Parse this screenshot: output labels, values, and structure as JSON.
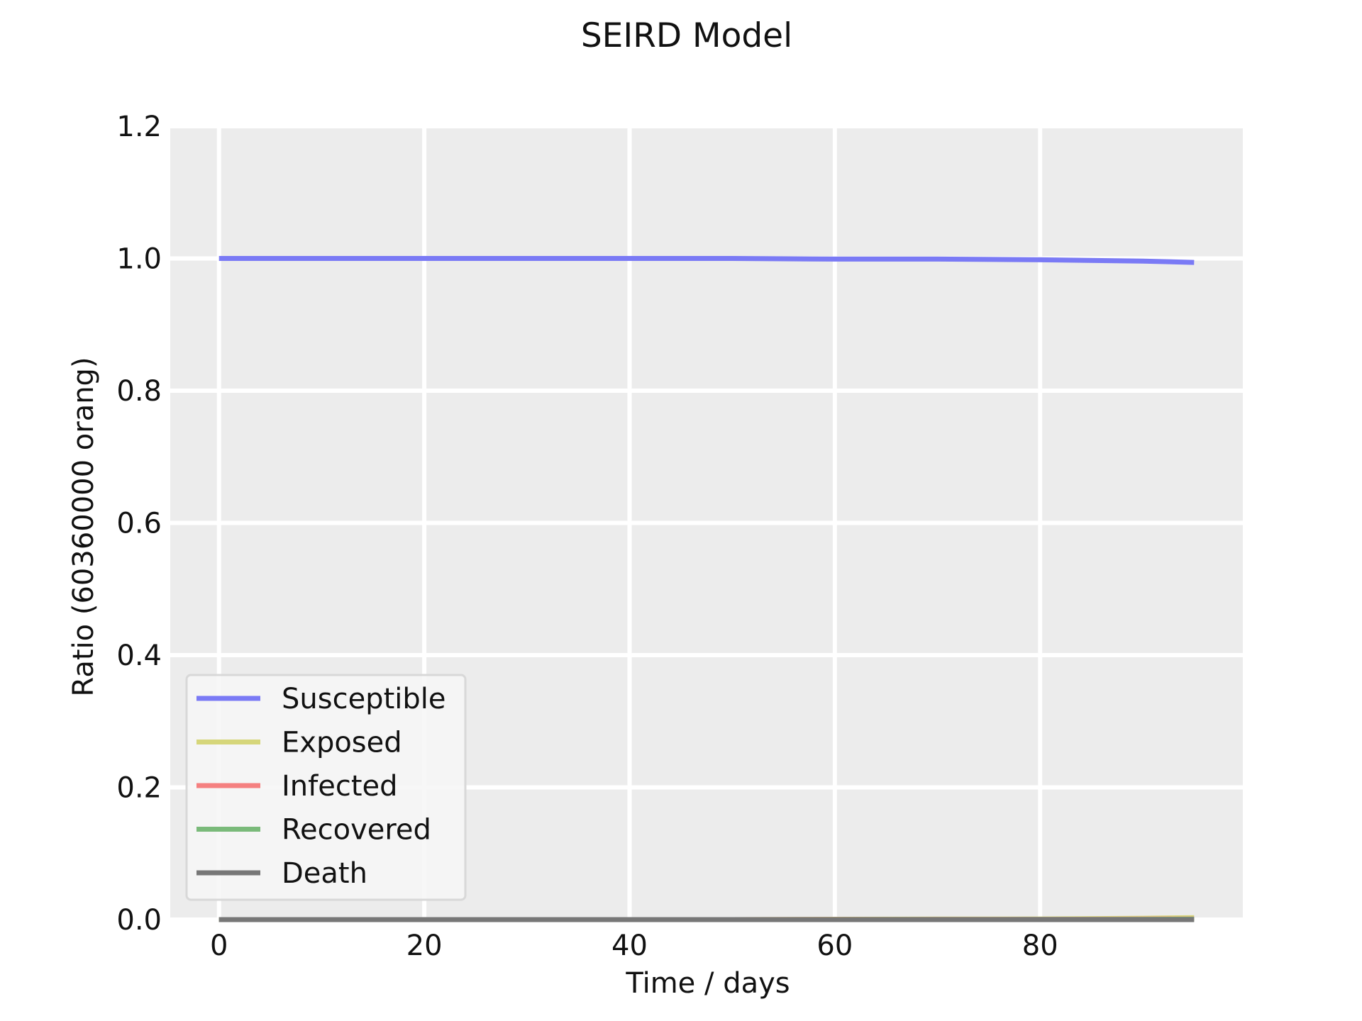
{
  "chart_data": {
    "type": "line",
    "title": "SEIRD Model",
    "xlabel": "Time / days",
    "ylabel": "Ratio (60360000 orang)",
    "xlim": [
      -4.75,
      99.75
    ],
    "ylim": [
      0.0,
      1.2
    ],
    "xticks": [
      0,
      20,
      40,
      60,
      80
    ],
    "xtick_labels": [
      "0",
      "20",
      "40",
      "60",
      "80"
    ],
    "yticks": [
      0.0,
      0.2,
      0.4,
      0.6,
      0.8,
      1.0,
      1.2
    ],
    "ytick_labels": [
      "0.0",
      "0.2",
      "0.4",
      "0.6",
      "0.8",
      "1.0",
      "1.2"
    ],
    "grid": true,
    "legend_position": "lower-left",
    "plot_background": "#ececec",
    "x": [
      0,
      10,
      20,
      30,
      40,
      50,
      60,
      70,
      80,
      90,
      95
    ],
    "series": [
      {
        "name": "Susceptible",
        "color": "#7a7af5",
        "values": [
          1.0,
          1.0,
          1.0,
          1.0,
          1.0,
          1.0,
          0.999,
          0.999,
          0.998,
          0.996,
          0.994
        ]
      },
      {
        "name": "Exposed",
        "color": "#d6d67a",
        "values": [
          0.0,
          0.0,
          0.0,
          0.0,
          0.0,
          0.0,
          0.0005,
          0.0007,
          0.001,
          0.002,
          0.003
        ]
      },
      {
        "name": "Infected",
        "color": "#f58080",
        "values": [
          0.0,
          0.0,
          0.0,
          0.0,
          0.0,
          0.0,
          0.0001,
          0.0002,
          0.0004,
          0.0007,
          0.001
        ]
      },
      {
        "name": "Recovered",
        "color": "#7aba7a",
        "values": [
          0.0,
          0.0,
          0.0,
          0.0,
          0.0,
          0.0,
          0.0,
          0.0001,
          0.0002,
          0.0004,
          0.0006
        ]
      },
      {
        "name": "Death",
        "color": "#777777",
        "values": [
          0.0,
          0.0,
          0.0,
          0.0,
          0.0,
          0.0,
          0.0,
          0.0,
          0.0,
          0.0,
          0.0
        ]
      }
    ]
  }
}
